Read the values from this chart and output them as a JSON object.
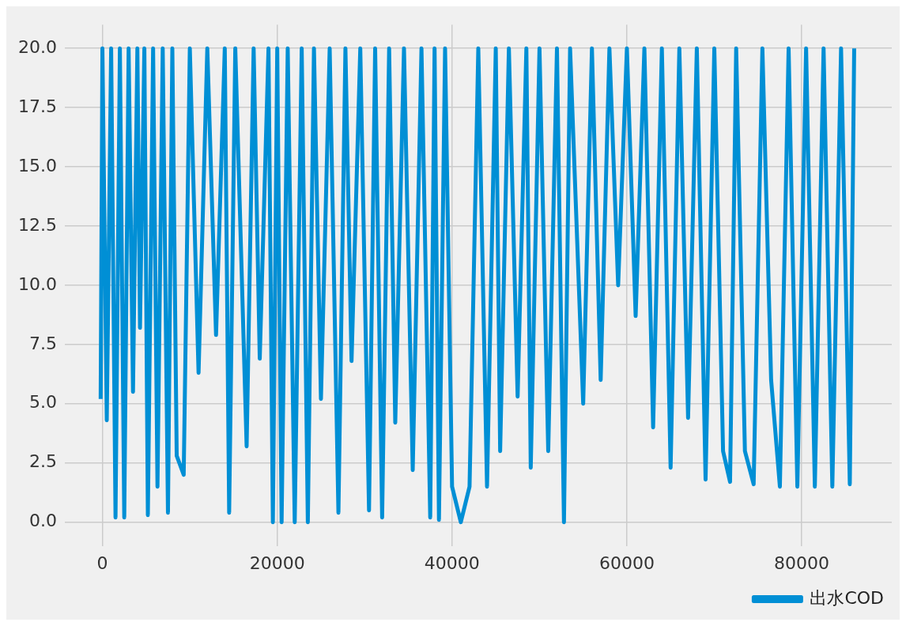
{
  "chart_data": {
    "type": "line",
    "x": [
      -200,
      0,
      500,
      1000,
      1500,
      2000,
      2500,
      3000,
      3500,
      4000,
      4300,
      4800,
      5200,
      5800,
      6300,
      6900,
      7500,
      8000,
      8500,
      9300,
      10000,
      11000,
      12000,
      13000,
      14000,
      14500,
      15200,
      16500,
      17300,
      18000,
      19000,
      19500,
      20000,
      20500,
      21200,
      22000,
      22800,
      23500,
      24200,
      25000,
      26000,
      27000,
      27800,
      28500,
      29500,
      30500,
      31200,
      32000,
      32800,
      33500,
      34500,
      35500,
      36500,
      37500,
      38000,
      38500,
      39200,
      40000,
      41000,
      42000,
      43000,
      44000,
      45000,
      45500,
      46500,
      47500,
      48500,
      49000,
      50000,
      51000,
      52000,
      52800,
      53500,
      55000,
      56000,
      57000,
      58000,
      59000,
      60000,
      61000,
      62000,
      63000,
      64000,
      65000,
      66000,
      67000,
      68000,
      69000,
      70000,
      71000,
      71800,
      72500,
      73500,
      74500,
      75500,
      76500,
      77500,
      78500,
      79500,
      80500,
      81500,
      82500,
      83500,
      84500,
      85500,
      86000
    ],
    "series": [
      {
        "name": "出水COD",
        "color": "#008fd5",
        "values": [
          5.2,
          20,
          4.3,
          20,
          0.2,
          20,
          0.2,
          20,
          5.5,
          20,
          8.2,
          20,
          0.3,
          20,
          1.5,
          20,
          0.4,
          20,
          2.8,
          2.0,
          20,
          6.3,
          20,
          7.9,
          20,
          0.4,
          20,
          3.2,
          20,
          6.9,
          20,
          0.0,
          20,
          0.0,
          20,
          0.0,
          20,
          0.0,
          20,
          5.2,
          20,
          0.4,
          20,
          6.8,
          20,
          0.5,
          20,
          0.2,
          20,
          4.2,
          20,
          2.2,
          20,
          0.2,
          20,
          0.1,
          20,
          1.5,
          0.0,
          1.5,
          20,
          1.5,
          20,
          3.0,
          20,
          5.3,
          20,
          2.3,
          20,
          3.0,
          20,
          0.0,
          20,
          5.0,
          20,
          6.0,
          20,
          10.0,
          20,
          8.7,
          20,
          4.0,
          20,
          2.3,
          20,
          4.4,
          20,
          1.8,
          20,
          3.0,
          1.7,
          20,
          3.0,
          1.6,
          20,
          6.0,
          1.5,
          20,
          1.5,
          20,
          1.5,
          20,
          1.5,
          20,
          1.6,
          20
        ]
      }
    ],
    "xlim": [
      -4300,
      90300
    ],
    "xticks": [
      0,
      20000,
      40000,
      60000,
      80000
    ],
    "ylim": [
      -1,
      21
    ],
    "yticks": [
      {
        "value": 0,
        "label": "0.0"
      },
      {
        "value": 2.5,
        "label": "2.5"
      },
      {
        "value": 5,
        "label": "5.0"
      },
      {
        "value": 7.5,
        "label": "7.5"
      },
      {
        "value": 10,
        "label": "10.0"
      },
      {
        "value": 12.5,
        "label": "12.5"
      },
      {
        "value": 15,
        "label": "15.0"
      },
      {
        "value": 17.5,
        "label": "17.5"
      },
      {
        "value": 20,
        "label": "20.0"
      }
    ],
    "grid": true,
    "legend": "bottom right",
    "marker": "none",
    "line_style": "solid"
  }
}
